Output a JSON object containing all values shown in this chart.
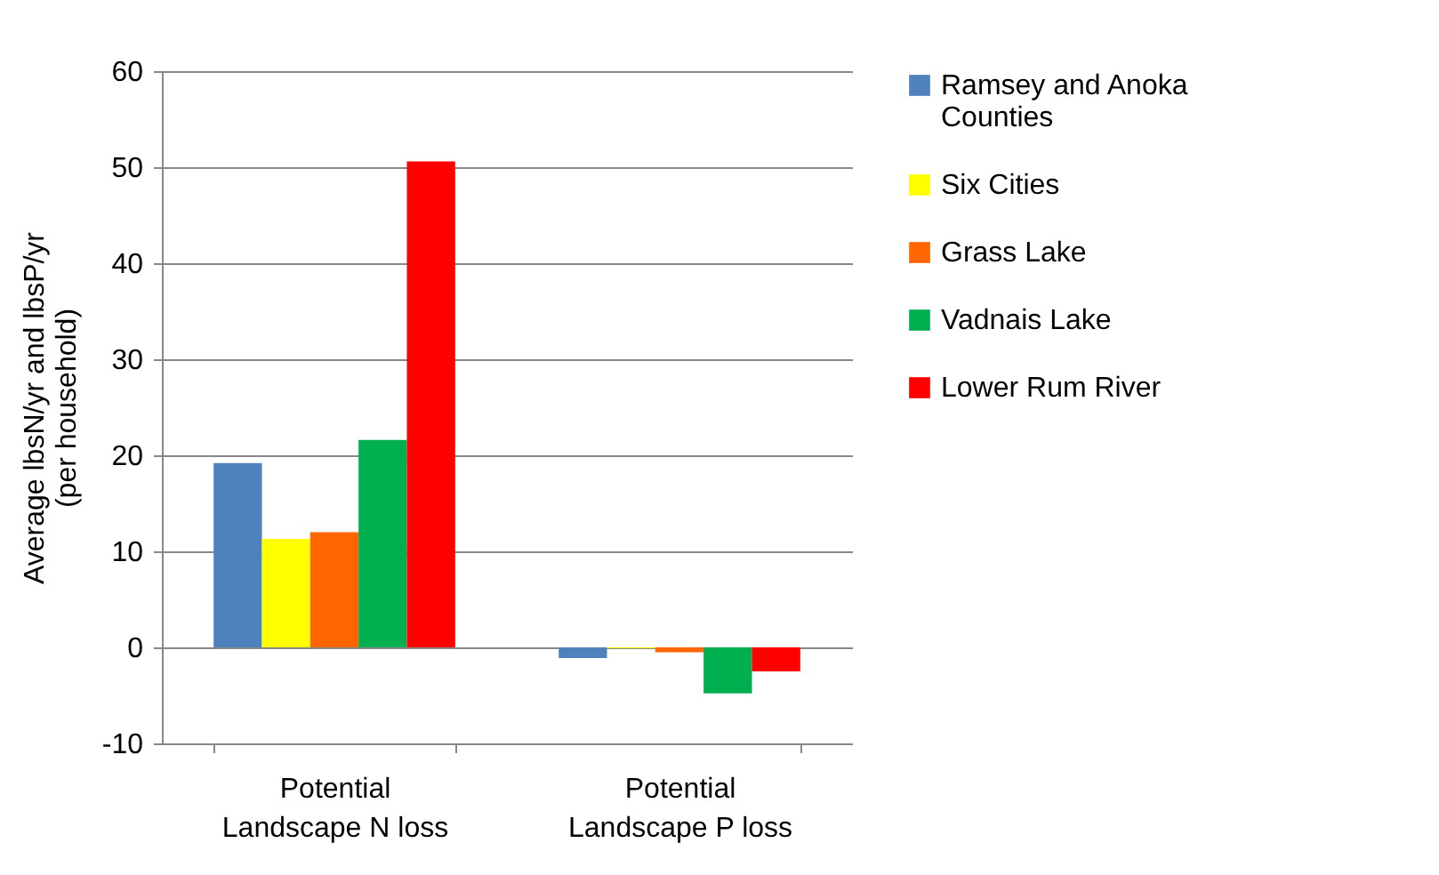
{
  "chart_data": {
    "type": "bar",
    "ylabel": "Average lbsN/yr and lbsP/yr (per household)",
    "categories": [
      "Potential Landscape N loss",
      "Potential Landscape P loss"
    ],
    "series": [
      {
        "name": "Ramsey and Anoka Counties",
        "color": "#4f81bd",
        "values": [
          19.2,
          -1.1
        ]
      },
      {
        "name": "Six Cities",
        "color": "#ffff00",
        "values": [
          11.3,
          -0.1
        ]
      },
      {
        "name": "Grass Lake",
        "color": "#ff6600",
        "values": [
          12.0,
          -0.5
        ]
      },
      {
        "name": "Vadnais Lake",
        "color": "#00b050",
        "values": [
          21.6,
          -4.8
        ]
      },
      {
        "name": "Lower Rum River",
        "color": "#ff0000",
        "values": [
          50.6,
          -2.5
        ]
      }
    ],
    "ylim": [
      -10,
      60
    ],
    "yticks": [
      -10,
      0,
      10,
      20,
      30,
      40,
      50,
      60
    ],
    "grid": "y",
    "legend": "right"
  }
}
